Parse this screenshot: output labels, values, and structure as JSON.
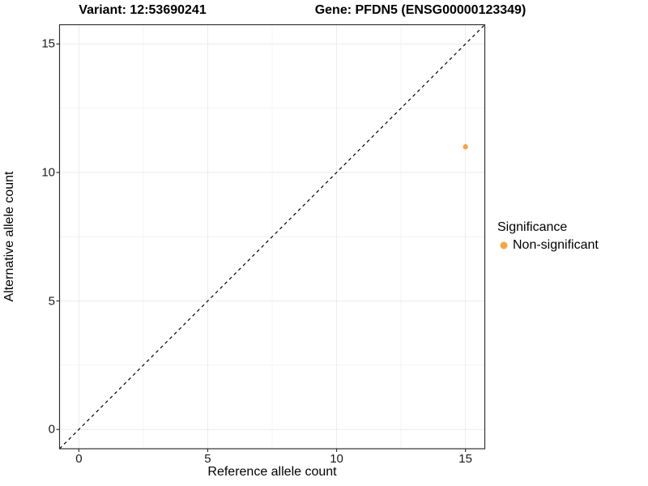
{
  "chart_data": {
    "type": "scatter",
    "title_left": "Variant: 12:53690241",
    "title_right": "Gene: PFDN5 (ENSG00000123349)",
    "xlabel": "Reference allele count",
    "ylabel": "Alternative allele count",
    "xlim": [
      -0.75,
      15.75
    ],
    "ylim": [
      -0.75,
      15.75
    ],
    "xticks": [
      0,
      5,
      10,
      15
    ],
    "yticks": [
      0,
      5,
      10,
      15
    ],
    "minor_ticks": [
      2.5,
      7.5,
      12.5
    ],
    "grid": {
      "major_color": "#EBEBEB",
      "minor_color": "#F4F4F4",
      "on": true
    },
    "panel_border_color": "#333333",
    "reference_line": {
      "type": "identity",
      "style": "dashed",
      "from": [
        -0.75,
        -0.75
      ],
      "to": [
        15.75,
        15.75
      ],
      "color": "#000000"
    },
    "series": [
      {
        "name": "Non-significant",
        "color": "#FAA43A",
        "points": [
          {
            "x": 15,
            "y": 11
          }
        ]
      }
    ],
    "legend": {
      "title": "Significance",
      "position": "right",
      "entries": [
        {
          "label": "Non-significant",
          "color": "#FAA43A"
        }
      ]
    }
  }
}
